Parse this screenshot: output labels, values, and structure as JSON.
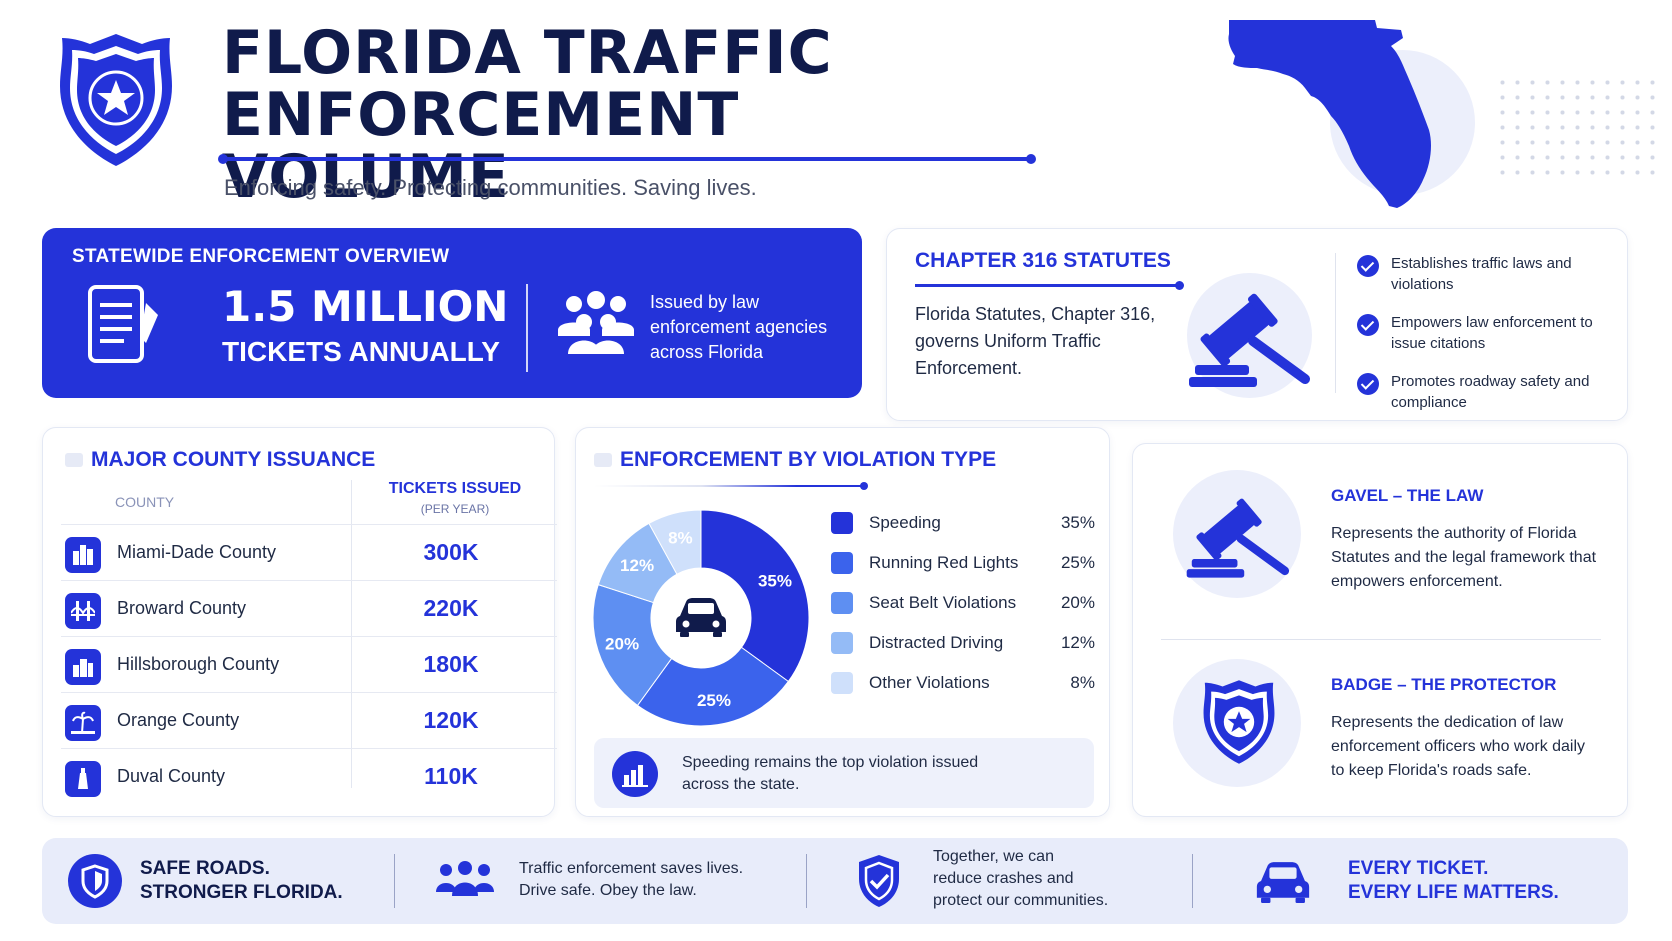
{
  "header": {
    "title_line1": "FLORIDA TRAFFIC",
    "title_line2": "ENFORCEMENT VOLUME",
    "tagline": "Enforcing safety. Protecting communities. Saving lives."
  },
  "overview": {
    "heading": "STATEWIDE ENFORCEMENT OVERVIEW",
    "big_number": "1.5 MILLION",
    "big_label": "TICKETS ANNUALLY",
    "description": "Issued by law enforcement agencies across Florida"
  },
  "chapter": {
    "title": "CHAPTER 316 STATUTES",
    "text": "Florida Statutes, Chapter 316, governs Uniform Traffic Enforcement.",
    "checks": [
      "Establishes traffic laws and violations",
      "Empowers law enforcement to issue citations",
      "Promotes roadway safety and compliance"
    ]
  },
  "counties": {
    "title": "MAJOR COUNTY ISSUANCE",
    "col_county": "COUNTY",
    "col_tickets": "TICKETS ISSUED",
    "col_tickets_sub": "(PER YEAR)",
    "rows": [
      {
        "name": "Miami-Dade County",
        "value": "300K"
      },
      {
        "name": "Broward County",
        "value": "220K"
      },
      {
        "name": "Hillsborough County",
        "value": "180K"
      },
      {
        "name": "Orange County",
        "value": "120K"
      },
      {
        "name": "Duval County",
        "value": "110K"
      }
    ]
  },
  "violations": {
    "title": "ENFORCEMENT BY VIOLATION TYPE",
    "note": "Speeding remains the top violation issued across the state.",
    "colors": [
      "#2433d9",
      "#3b63ec",
      "#5e8ff2",
      "#94bbf6",
      "#cfe0fb"
    ]
  },
  "chart_data": {
    "type": "pie",
    "categories": [
      "Speeding",
      "Running Red Lights",
      "Seat Belt Violations",
      "Distracted Driving",
      "Other Violations"
    ],
    "values": [
      35,
      25,
      20,
      12,
      8
    ],
    "labels": [
      "35%",
      "25%",
      "20%",
      "12%",
      "8%"
    ],
    "donut": true,
    "legend_position": "right"
  },
  "symbols": {
    "gavel_title": "GAVEL – THE LAW",
    "gavel_desc": "Represents the authority of Florida Statutes and the legal framework that empowers enforcement.",
    "badge_title": "BADGE – THE PROTECTOR",
    "badge_desc": "Represents the dedication of law enforcement officers who work daily to keep Florida's roads safe."
  },
  "footer": {
    "slogan_line1": "SAFE ROADS.",
    "slogan_line2": "STRONGER FLORIDA.",
    "msg1_line1": "Traffic enforcement saves lives.",
    "msg1_line2": "Drive safe. Obey the law.",
    "msg2_line1": "Together, we can",
    "msg2_line2": "reduce crashes and",
    "msg2_line3": "protect our communities.",
    "end_line1": "EVERY TICKET.",
    "end_line2": "EVERY LIFE MATTERS."
  },
  "icons": [
    "police-badge-icon",
    "florida-map-icon",
    "document-icon",
    "people-icon",
    "gavel-icon",
    "check-icon",
    "city-icon",
    "bridge-icon",
    "building-icon",
    "palm-icon",
    "lighthouse-icon",
    "car-icon",
    "bar-chart-icon",
    "shield-icon"
  ]
}
